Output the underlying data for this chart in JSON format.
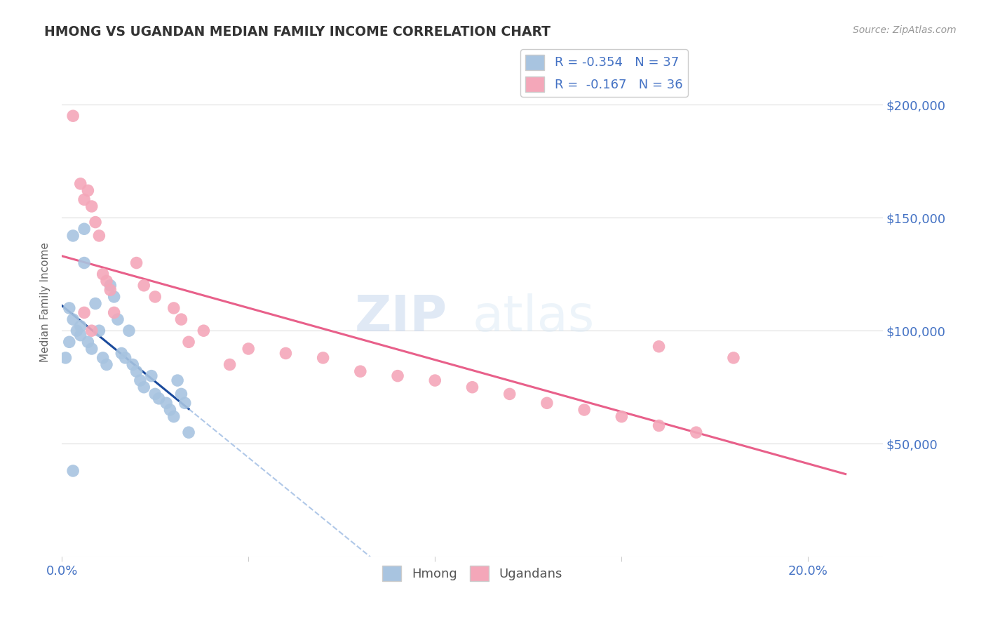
{
  "title": "HMONG VS UGANDAN MEDIAN FAMILY INCOME CORRELATION CHART",
  "source": "Source: ZipAtlas.com",
  "ylabel": "Median Family Income",
  "xlim": [
    0.0,
    0.22
  ],
  "ylim": [
    0,
    225000
  ],
  "hmong_color": "#a8c4e0",
  "ugandan_color": "#f4a7b9",
  "hmong_line_color": "#1a4a9c",
  "ugandan_line_color": "#e8608a",
  "hmong_dashed_color": "#b0c8e8",
  "legend_r_hmong": "-0.354",
  "legend_n_hmong": "37",
  "legend_r_ugandan": "-0.167",
  "legend_n_ugandan": "36",
  "watermark_zip": "ZIP",
  "watermark_atlas": "atlas",
  "axis_label_color": "#4472C4",
  "grid_color": "#dddddd",
  "hmong_x": [
    0.001,
    0.002,
    0.002,
    0.003,
    0.003,
    0.004,
    0.005,
    0.005,
    0.006,
    0.007,
    0.008,
    0.009,
    0.01,
    0.011,
    0.012,
    0.013,
    0.014,
    0.015,
    0.016,
    0.017,
    0.018,
    0.019,
    0.02,
    0.021,
    0.022,
    0.024,
    0.025,
    0.026,
    0.028,
    0.029,
    0.03,
    0.031,
    0.032,
    0.033,
    0.034,
    0.003,
    0.006
  ],
  "hmong_y": [
    88000,
    95000,
    110000,
    105000,
    142000,
    100000,
    102000,
    98000,
    130000,
    95000,
    92000,
    112000,
    100000,
    88000,
    85000,
    120000,
    115000,
    105000,
    90000,
    88000,
    100000,
    85000,
    82000,
    78000,
    75000,
    80000,
    72000,
    70000,
    68000,
    65000,
    62000,
    78000,
    72000,
    68000,
    55000,
    38000,
    145000
  ],
  "ugandan_x": [
    0.003,
    0.005,
    0.006,
    0.007,
    0.008,
    0.009,
    0.01,
    0.011,
    0.012,
    0.013,
    0.014,
    0.02,
    0.022,
    0.025,
    0.03,
    0.032,
    0.034,
    0.038,
    0.045,
    0.05,
    0.06,
    0.07,
    0.08,
    0.09,
    0.1,
    0.11,
    0.12,
    0.13,
    0.14,
    0.15,
    0.16,
    0.17,
    0.18,
    0.16,
    0.006,
    0.008
  ],
  "ugandan_y": [
    195000,
    165000,
    158000,
    162000,
    155000,
    148000,
    142000,
    125000,
    122000,
    118000,
    108000,
    130000,
    120000,
    115000,
    110000,
    105000,
    95000,
    100000,
    85000,
    92000,
    90000,
    88000,
    82000,
    80000,
    78000,
    75000,
    72000,
    68000,
    65000,
    62000,
    58000,
    55000,
    88000,
    93000,
    108000,
    100000
  ]
}
